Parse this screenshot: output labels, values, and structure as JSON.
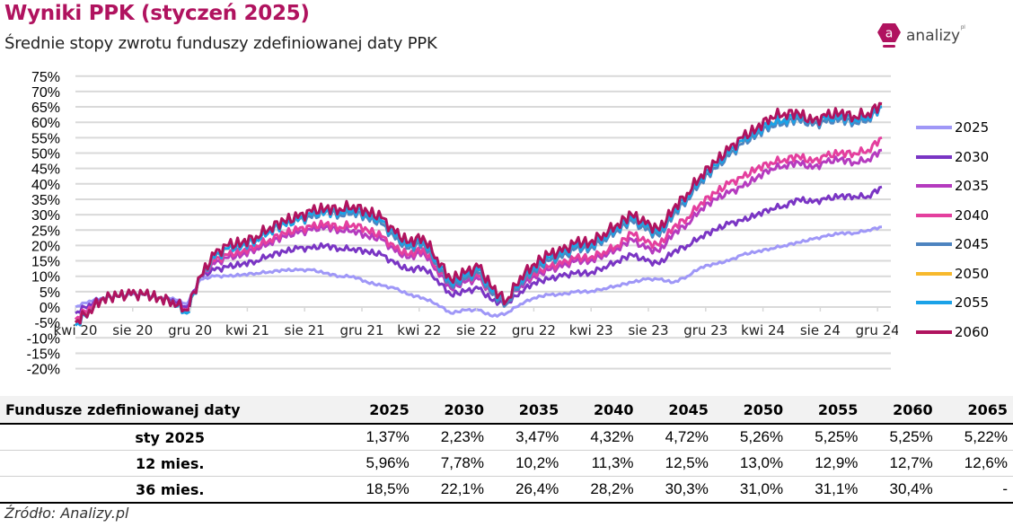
{
  "header": {
    "title": "Wyniki PPK (styczeń 2025)",
    "subtitle": "Średnie stopy zwrotu funduszy zdefiniowanej daty PPK"
  },
  "logo": {
    "text": "analizy",
    "tld": "pl",
    "icon_letter": "a",
    "color": "#b0135f"
  },
  "chart_data": {
    "type": "line",
    "title": "Średnie stopy zwrotu funduszy zdefiniowanej daty PPK",
    "xlabel": "",
    "ylabel": "",
    "ylim": [
      -20,
      75
    ],
    "y_ticks": [
      "75%",
      "70%",
      "65%",
      "60%",
      "55%",
      "50%",
      "45%",
      "40%",
      "35%",
      "30%",
      "25%",
      "20%",
      "15%",
      "10%",
      "5%",
      "0%",
      "-5%",
      "-10%",
      "-15%",
      "-20%"
    ],
    "x_tick_labels": [
      "kwi 20",
      "sie 20",
      "gru 20",
      "kwi 21",
      "sie 21",
      "gru 21",
      "kwi 22",
      "sie 22",
      "gru 22",
      "kwi 23",
      "sie 23",
      "gru 23",
      "kwi 24",
      "sie 24",
      "gru 24"
    ],
    "grid": true,
    "legend_position": "right",
    "x": [
      "2020-03",
      "2020-04",
      "2020-05",
      "2020-06",
      "2020-07",
      "2020-08",
      "2020-09",
      "2020-10",
      "2020-11",
      "2020-12",
      "2021-01",
      "2021-02",
      "2021-03",
      "2021-04",
      "2021-05",
      "2021-06",
      "2021-07",
      "2021-08",
      "2021-09",
      "2021-10",
      "2021-11",
      "2021-12",
      "2022-01",
      "2022-02",
      "2022-03",
      "2022-04",
      "2022-05",
      "2022-06",
      "2022-07",
      "2022-08",
      "2022-09",
      "2022-10",
      "2022-11",
      "2022-12",
      "2023-01",
      "2023-02",
      "2023-03",
      "2023-04",
      "2023-05",
      "2023-06",
      "2023-07",
      "2023-08",
      "2023-09",
      "2023-10",
      "2023-11",
      "2023-12",
      "2024-01",
      "2024-02",
      "2024-03",
      "2024-04",
      "2024-05",
      "2024-06",
      "2024-07",
      "2024-08",
      "2024-09",
      "2024-10",
      "2024-11",
      "2024-12",
      "2025-01"
    ],
    "series": [
      {
        "name": "2025",
        "color": "#9f97f7",
        "values": [
          0,
          2,
          3,
          3.5,
          4,
          4,
          3,
          3,
          1,
          9,
          10,
          10,
          10.5,
          11,
          11.5,
          12,
          12,
          12,
          11,
          10,
          10,
          8,
          7,
          6,
          4,
          3,
          1,
          -2,
          -1,
          -1,
          -3,
          -2,
          1,
          3,
          4,
          4,
          5,
          5,
          6,
          7,
          8,
          9,
          9,
          8,
          10,
          13,
          14,
          15,
          17,
          18,
          19,
          20,
          21,
          22,
          23,
          24,
          24,
          25,
          26
        ]
      },
      {
        "name": "2030",
        "color": "#7a35c4",
        "values": [
          -2,
          1,
          3,
          3.5,
          4,
          4,
          3,
          2.5,
          0,
          10,
          12,
          13,
          14,
          15,
          17,
          18,
          19,
          19,
          20,
          19,
          19,
          18,
          17,
          14,
          12,
          13,
          9,
          4,
          5,
          6,
          2,
          1,
          5,
          8,
          9,
          10,
          11,
          11,
          13,
          15,
          17,
          15,
          14,
          18,
          20,
          23,
          25,
          27,
          28,
          30,
          32,
          33,
          35,
          34,
          35,
          36,
          36,
          36,
          39
        ]
      },
      {
        "name": "2035",
        "color": "#b53bbf",
        "values": [
          -4,
          0,
          3,
          3.5,
          4,
          4,
          3,
          2,
          -1,
          10,
          14,
          16,
          17,
          19,
          21,
          23,
          24,
          25,
          26,
          25,
          25,
          23,
          22,
          18,
          16,
          18,
          12,
          6,
          8,
          9,
          4,
          2,
          7,
          10,
          12,
          13,
          15,
          15,
          17,
          19,
          22,
          19,
          18,
          24,
          27,
          32,
          35,
          37,
          39,
          42,
          45,
          46,
          47,
          45,
          47,
          48,
          47,
          48,
          51
        ]
      },
      {
        "name": "2040",
        "color": "#e43f9e",
        "values": [
          -4,
          0,
          3,
          3.5,
          4,
          4,
          3,
          2,
          -1,
          10,
          15,
          17,
          18,
          20,
          22,
          24,
          25,
          26,
          27,
          26,
          27,
          25,
          23,
          19,
          17,
          19,
          13,
          7,
          9,
          10,
          4,
          2,
          8,
          11,
          13,
          14,
          16,
          16,
          18,
          20,
          24,
          21,
          20,
          26,
          29,
          34,
          37,
          40,
          42,
          45,
          47,
          48,
          49,
          47,
          49,
          50,
          50,
          51,
          55
        ]
      },
      {
        "name": "2045",
        "color": "#4d84c0",
        "values": [
          -5,
          -1,
          3,
          3.5,
          4,
          4,
          3,
          2,
          -2,
          10,
          16,
          19,
          20,
          22,
          25,
          27,
          28,
          29,
          31,
          30,
          31,
          29,
          27,
          22,
          19,
          21,
          14,
          7,
          9,
          11,
          4,
          1,
          8,
          12,
          15,
          16,
          19,
          19,
          22,
          25,
          28,
          25,
          23,
          30,
          35,
          41,
          45,
          49,
          53,
          56,
          59,
          60,
          61,
          59,
          60,
          61,
          60,
          61,
          65
        ]
      },
      {
        "name": "2050",
        "color": "#f7b92d",
        "values": [
          -5,
          -1,
          3,
          3.5,
          4,
          4,
          3,
          2,
          -2,
          10,
          16,
          19,
          20,
          22,
          25,
          27,
          28,
          30,
          31,
          31,
          32,
          30,
          28,
          23,
          20,
          22,
          15,
          8,
          10,
          12,
          5,
          2,
          9,
          13,
          16,
          17,
          20,
          20,
          23,
          26,
          29,
          26,
          24,
          31,
          36,
          42,
          46,
          50,
          54,
          57,
          60,
          61,
          62,
          60,
          61,
          62,
          61,
          62,
          66
        ]
      },
      {
        "name": "2055",
        "color": "#1aa2e8",
        "values": [
          -6,
          -1,
          3,
          3.5,
          4,
          4,
          3,
          2,
          -2,
          10,
          16,
          19,
          20,
          22,
          25,
          27,
          28,
          30,
          31,
          31,
          32,
          30,
          28,
          23,
          20,
          22,
          15,
          8,
          10,
          12,
          5,
          2,
          9,
          13,
          16,
          17,
          20,
          20,
          23,
          26,
          29,
          26,
          24,
          31,
          36,
          42,
          46,
          50,
          54,
          57,
          60,
          61,
          62,
          60,
          61,
          62,
          61,
          62,
          65
        ]
      },
      {
        "name": "2060",
        "color": "#b0135f",
        "values": [
          -5,
          -1,
          3,
          3.5,
          4,
          4,
          3,
          2,
          -1,
          10,
          17,
          20,
          21,
          23,
          26,
          28,
          29,
          31,
          32,
          32,
          33,
          31,
          29,
          24,
          21,
          23,
          16,
          9,
          11,
          13,
          6,
          2,
          10,
          14,
          17,
          18,
          21,
          21,
          24,
          27,
          30,
          27,
          25,
          32,
          37,
          43,
          47,
          51,
          55,
          58,
          62,
          63,
          63,
          60,
          62,
          63,
          62,
          63,
          66
        ]
      }
    ],
    "table": {
      "header": [
        "Fundusze zdefiniowanej daty",
        "2025",
        "2030",
        "2035",
        "2040",
        "2045",
        "2050",
        "2055",
        "2060",
        "2065"
      ],
      "rows": [
        [
          "sty 2025",
          "1,37%",
          "2,23%",
          "3,47%",
          "4,32%",
          "4,72%",
          "5,26%",
          "5,25%",
          "5,25%",
          "5,22%"
        ],
        [
          "12 mies.",
          "5,96%",
          "7,78%",
          "10,2%",
          "11,3%",
          "12,5%",
          "13,0%",
          "12,9%",
          "12,7%",
          "12,6%"
        ],
        [
          "36 mies.",
          "18,5%",
          "22,1%",
          "26,4%",
          "28,2%",
          "30,3%",
          "31,0%",
          "31,1%",
          "30,4%",
          "-"
        ]
      ]
    }
  },
  "source": "Źródło: Analizy.pl"
}
